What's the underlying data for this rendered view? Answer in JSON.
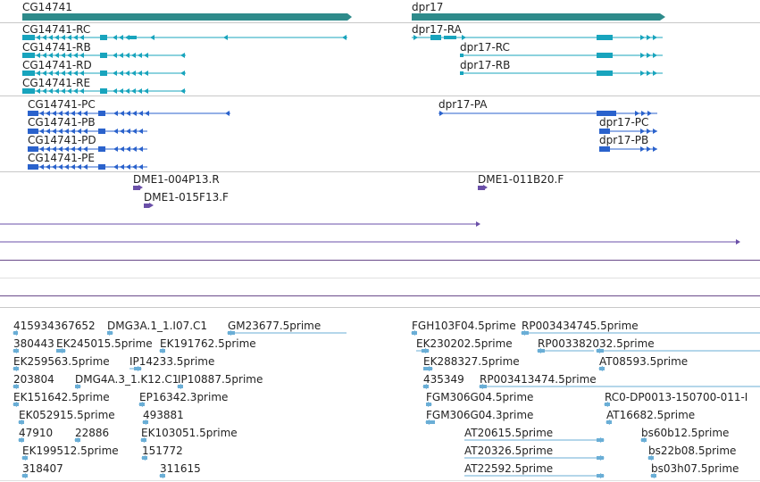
{
  "colors": {
    "gene": "#2e8b8b",
    "transcript_cg": "#18a4bd",
    "transcript_p": "#2a62cc",
    "clone": "#6a4fa8",
    "est": "#6aaed6"
  },
  "genes": [
    "CG14741",
    "dpr17"
  ],
  "transcripts_r": [
    "CG14741-RC",
    "CG14741-RB",
    "CG14741-RD",
    "CG14741-RE",
    "dpr17-RA",
    "dpr17-RC",
    "dpr17-RB"
  ],
  "transcripts_p": [
    "CG14741-PC",
    "CG14741-PB",
    "CG14741-PD",
    "CG14741-PE",
    "dpr17-PA",
    "dpr17-PC",
    "dpr17-PB"
  ],
  "clones": [
    "DME1-004P13.R",
    "DME1-015F13.F",
    "DME1-011B20.F"
  ],
  "ests": [
    "415934367652",
    "DMG3A.1_1.I07.C1",
    "GM23677.5prime",
    "FGH103F04.5prime",
    "RP003434745.5prime",
    "380443",
    "EK245015.5prime",
    "EK191762.5prime",
    "EK230202.5prime",
    "RP003382032.5prime",
    "EK259563.5prime",
    "IP14233.5prime",
    "EK288327.5prime",
    "AT08593.5prime",
    "203804",
    "DMG4A.3_1.K12.C1",
    "IP10887.5prime",
    "435349",
    "RP003413474.5prime",
    "EK151642.5prime",
    "EP16342.3prime",
    "FGM306G04.5prime",
    "RC0-DP0013-150700-011-I",
    "EK052915.5prime",
    "493881",
    "FGM306G04.3prime",
    "AT16682.5prime",
    "47910",
    "22886",
    "EK103051.5prime",
    "AT20615.5prime",
    "bs60b12.5prime",
    "EK199512.5prime",
    "151772",
    "AT20326.5prime",
    "bs22b08.5prime",
    "318407",
    "311615",
    "AT22592.5prime",
    "bs03h07.5prime"
  ]
}
